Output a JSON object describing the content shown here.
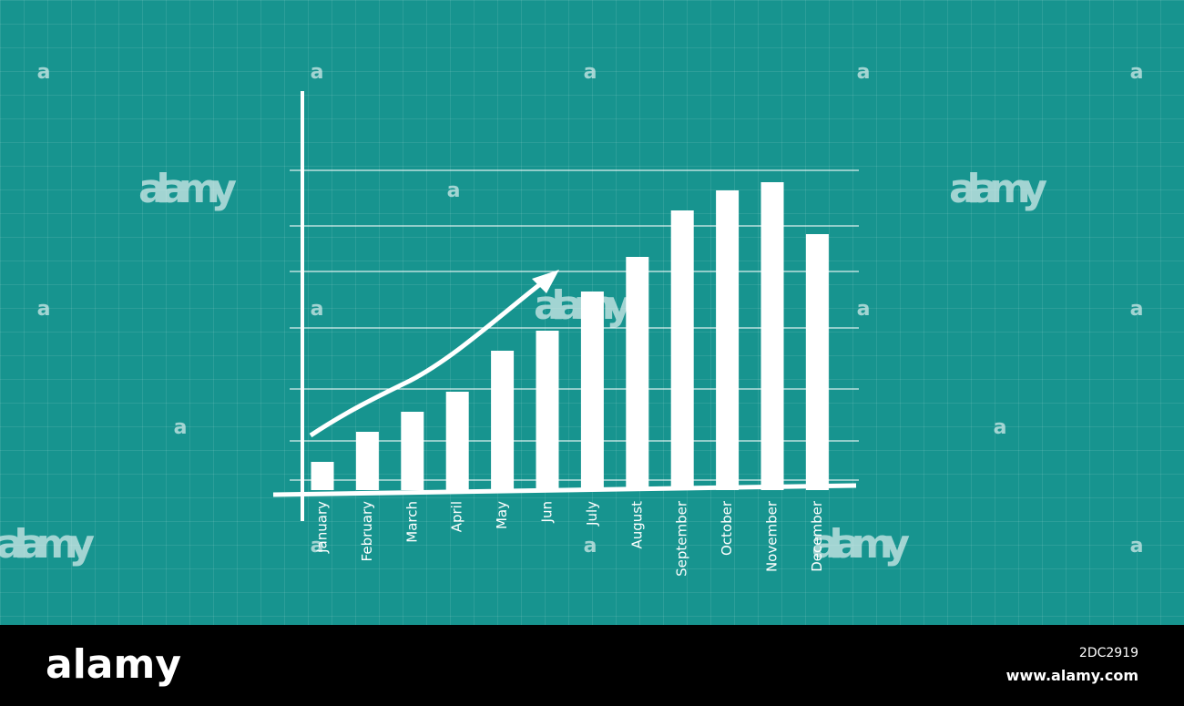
{
  "chart_data": {
    "type": "bar",
    "categories": [
      "January",
      "February",
      "March",
      "April",
      "May",
      "Jun",
      "July",
      "August",
      "September",
      "October",
      "November",
      "December"
    ],
    "values": [
      31,
      64,
      86,
      108,
      153,
      175,
      218,
      256,
      307,
      329,
      338,
      281
    ],
    "color": "#ffffff",
    "ylim": [
      0,
      350
    ]
  },
  "watermark": {
    "logo": "alamy",
    "mark": "a"
  },
  "footer": {
    "logo": "alamy",
    "image_id": "2DC2919",
    "url": "www.alamy.com"
  }
}
